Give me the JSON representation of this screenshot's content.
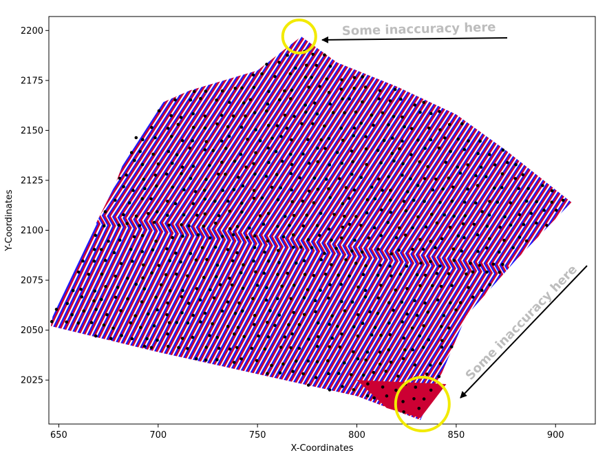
{
  "chart_data": {
    "type": "line",
    "title": "",
    "xlabel": "X-Coordinates",
    "ylabel": "Y-Coordinates",
    "xlim": [
      645,
      920
    ],
    "ylim": [
      2003,
      2207
    ],
    "xticks": [
      650,
      700,
      750,
      800,
      850,
      900
    ],
    "yticks": [
      2025,
      2050,
      2075,
      2100,
      2125,
      2150,
      2175,
      2200
    ],
    "grid": false,
    "series": [
      {
        "role": "path-lines",
        "color": "#1a1aff"
      },
      {
        "role": "path-lines-offset",
        "color": "#cc0033"
      },
      {
        "role": "measured-points",
        "color": "#000000"
      }
    ],
    "region_outline": [
      [
        646,
        2052
      ],
      [
        648,
        2063
      ],
      [
        660,
        2086
      ],
      [
        678,
        2122
      ],
      [
        688,
        2148
      ],
      [
        700,
        2163
      ],
      [
        716,
        2170
      ],
      [
        750,
        2180
      ],
      [
        772,
        2197
      ],
      [
        790,
        2184
      ],
      [
        820,
        2172
      ],
      [
        850,
        2158
      ],
      [
        875,
        2140
      ],
      [
        908,
        2114
      ],
      [
        880,
        2085
      ],
      [
        855,
        2057
      ],
      [
        840,
        2022
      ],
      [
        832,
        2005
      ],
      [
        800,
        2017
      ],
      [
        700,
        2039
      ],
      [
        646,
        2052
      ]
    ],
    "fill_region": [
      [
        800,
        2025
      ],
      [
        845,
        2023
      ],
      [
        832,
        2006
      ],
      [
        815,
        2011
      ]
    ],
    "annotations": [
      {
        "text": "Some inaccuracy here",
        "circle_at": [
          771,
          2197
        ]
      },
      {
        "text": "Some inaccuracy here",
        "circle_at": [
          833,
          2013
        ]
      }
    ]
  },
  "colors": {
    "blue_path": "#1a1aff",
    "red_path": "#cc0033",
    "points": "#000000",
    "highlight_circle": "#f2ea00",
    "annotation_text": "#bdbdbd",
    "arrow": "#000000"
  }
}
